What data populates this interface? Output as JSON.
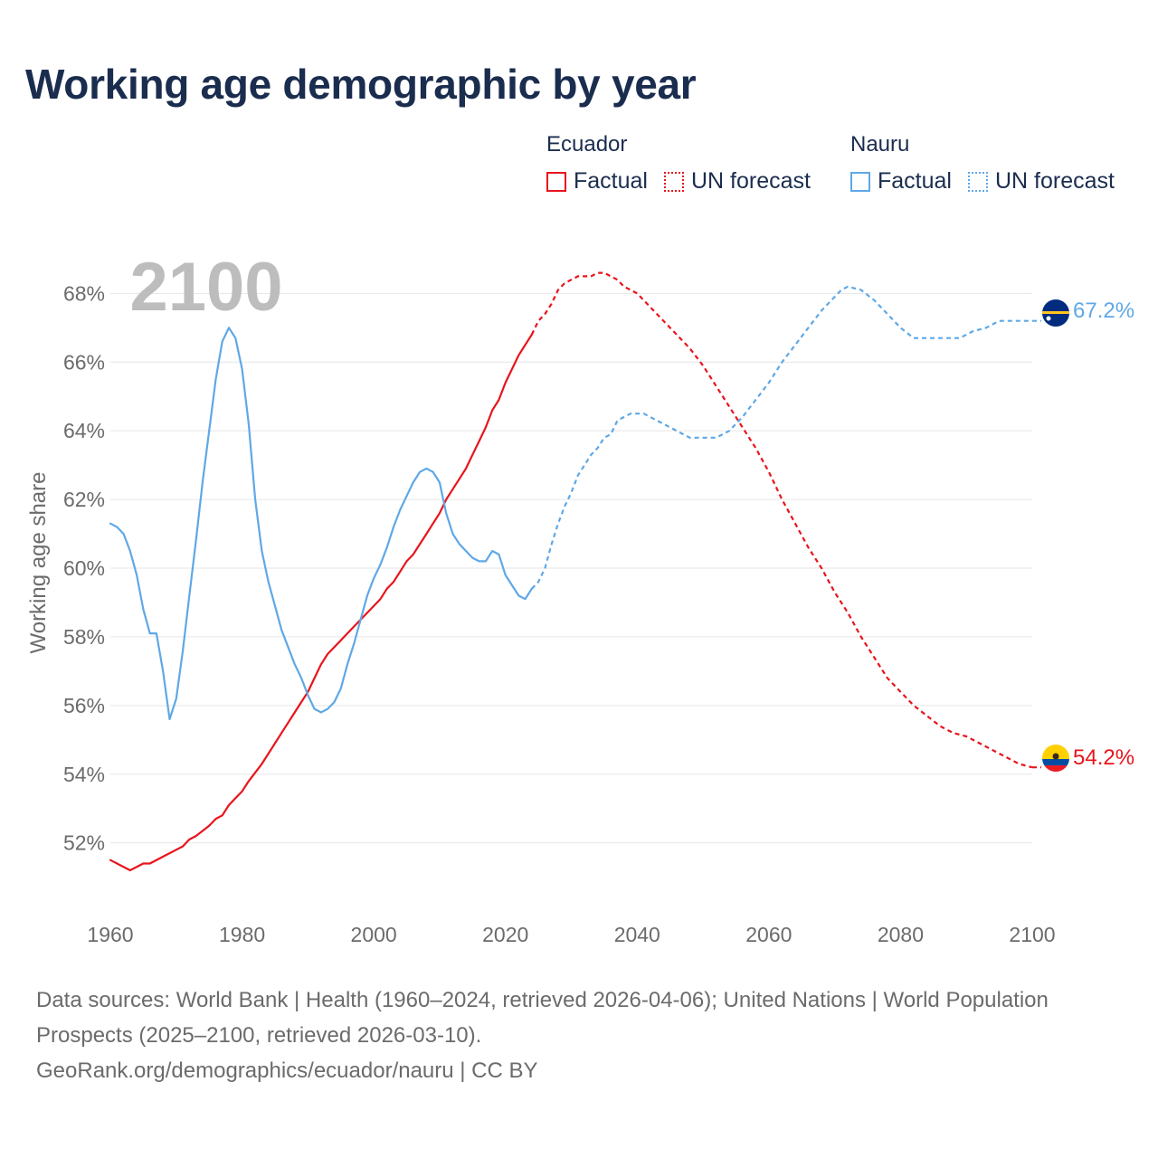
{
  "title": "Working age demographic by year",
  "legend": {
    "groups": [
      {
        "country": "Ecuador",
        "factual_label": "Factual",
        "forecast_label": "UN forecast",
        "color": "#e8141c"
      },
      {
        "country": "Nauru",
        "factual_label": "Factual",
        "forecast_label": "UN forecast",
        "color": "#5fa8e6"
      }
    ]
  },
  "footer": {
    "line1": "Data sources: World Bank | Health (1960–2024, retrieved 2026-04-06); United Nations | World Population Prospects (2025–2100, retrieved 2026-03-10).",
    "line2": "GeoRank.org/demographics/ecuador/nauru | CC BY"
  },
  "chart_data": {
    "type": "line",
    "title": "Working age demographic by year",
    "xlabel": "",
    "ylabel": "Working age share",
    "year_watermark": "2100",
    "xlim": [
      1960,
      2100
    ],
    "ylim": [
      50.2,
      69.3
    ],
    "x_ticks": [
      1960,
      1980,
      2000,
      2020,
      2040,
      2060,
      2080,
      2100
    ],
    "x_tick_labels": [
      "1960",
      "1980",
      "2000",
      "2020",
      "2040",
      "2060",
      "2080",
      "2100"
    ],
    "y_ticks": [
      52,
      54,
      56,
      58,
      60,
      62,
      64,
      66,
      68
    ],
    "y_tick_labels": [
      "52%",
      "54%",
      "56%",
      "58%",
      "60%",
      "62%",
      "64%",
      "66%",
      "68%"
    ],
    "grid": true,
    "factual_end_year": 2024,
    "series": [
      {
        "name": "Ecuador",
        "color": "#e8141c",
        "end_label": "54.2%",
        "flag": "ecuador",
        "points": [
          [
            1960,
            51.5
          ],
          [
            1963,
            51.2
          ],
          [
            1965,
            51.4
          ],
          [
            1966,
            51.4
          ],
          [
            1968,
            51.6
          ],
          [
            1970,
            51.8
          ],
          [
            1971,
            51.9
          ],
          [
            1972,
            52.1
          ],
          [
            1973,
            52.2
          ],
          [
            1975,
            52.5
          ],
          [
            1976,
            52.7
          ],
          [
            1977,
            52.8
          ],
          [
            1978,
            53.1
          ],
          [
            1979,
            53.3
          ],
          [
            1980,
            53.5
          ],
          [
            1981,
            53.8
          ],
          [
            1983,
            54.3
          ],
          [
            1984,
            54.6
          ],
          [
            1986,
            55.2
          ],
          [
            1987,
            55.5
          ],
          [
            1988,
            55.8
          ],
          [
            1989,
            56.1
          ],
          [
            1990,
            56.4
          ],
          [
            1991,
            56.8
          ],
          [
            1992,
            57.2
          ],
          [
            1993,
            57.5
          ],
          [
            1995,
            57.9
          ],
          [
            1997,
            58.3
          ],
          [
            1999,
            58.7
          ],
          [
            2001,
            59.1
          ],
          [
            2002,
            59.4
          ],
          [
            2003,
            59.6
          ],
          [
            2004,
            59.9
          ],
          [
            2005,
            60.2
          ],
          [
            2006,
            60.4
          ],
          [
            2007,
            60.7
          ],
          [
            2008,
            61.0
          ],
          [
            2009,
            61.3
          ],
          [
            2010,
            61.6
          ],
          [
            2011,
            62.0
          ],
          [
            2012,
            62.3
          ],
          [
            2013,
            62.6
          ],
          [
            2014,
            62.9
          ],
          [
            2015,
            63.3
          ],
          [
            2016,
            63.7
          ],
          [
            2017,
            64.1
          ],
          [
            2018,
            64.6
          ],
          [
            2019,
            64.9
          ],
          [
            2020,
            65.4
          ],
          [
            2021,
            65.8
          ],
          [
            2022,
            66.2
          ],
          [
            2023,
            66.5
          ],
          [
            2024,
            66.8
          ],
          [
            2025,
            67.2
          ],
          [
            2026,
            67.4
          ],
          [
            2027,
            67.7
          ],
          [
            2028,
            68.1
          ],
          [
            2029,
            68.3
          ],
          [
            2030,
            68.4
          ],
          [
            2031,
            68.5
          ],
          [
            2033,
            68.5
          ],
          [
            2034,
            68.6
          ],
          [
            2035,
            68.6
          ],
          [
            2036,
            68.5
          ],
          [
            2037,
            68.4
          ],
          [
            2038,
            68.2
          ],
          [
            2040,
            68.0
          ],
          [
            2042,
            67.6
          ],
          [
            2044,
            67.2
          ],
          [
            2046,
            66.8
          ],
          [
            2048,
            66.4
          ],
          [
            2050,
            65.9
          ],
          [
            2052,
            65.3
          ],
          [
            2054,
            64.7
          ],
          [
            2056,
            64.1
          ],
          [
            2058,
            63.5
          ],
          [
            2060,
            62.8
          ],
          [
            2062,
            62.0
          ],
          [
            2064,
            61.3
          ],
          [
            2066,
            60.6
          ],
          [
            2068,
            60.0
          ],
          [
            2070,
            59.3
          ],
          [
            2072,
            58.7
          ],
          [
            2074,
            58.0
          ],
          [
            2076,
            57.4
          ],
          [
            2078,
            56.8
          ],
          [
            2080,
            56.4
          ],
          [
            2082,
            56.0
          ],
          [
            2084,
            55.7
          ],
          [
            2086,
            55.4
          ],
          [
            2088,
            55.2
          ],
          [
            2090,
            55.1
          ],
          [
            2092,
            54.9
          ],
          [
            2094,
            54.7
          ],
          [
            2096,
            54.5
          ],
          [
            2098,
            54.3
          ],
          [
            2100,
            54.2
          ]
        ]
      },
      {
        "name": "Nauru",
        "color": "#5fa8e6",
        "end_label": "67.2%",
        "flag": "nauru",
        "points": [
          [
            1960,
            61.3
          ],
          [
            1961,
            61.2
          ],
          [
            1962,
            61.0
          ],
          [
            1963,
            60.5
          ],
          [
            1964,
            59.8
          ],
          [
            1965,
            58.8
          ],
          [
            1966,
            58.1
          ],
          [
            1967,
            58.1
          ],
          [
            1968,
            57.0
          ],
          [
            1969,
            55.6
          ],
          [
            1970,
            56.2
          ],
          [
            1971,
            57.6
          ],
          [
            1972,
            59.2
          ],
          [
            1973,
            60.8
          ],
          [
            1974,
            62.5
          ],
          [
            1975,
            64.0
          ],
          [
            1976,
            65.5
          ],
          [
            1977,
            66.6
          ],
          [
            1978,
            67.0
          ],
          [
            1979,
            66.7
          ],
          [
            1980,
            65.8
          ],
          [
            1981,
            64.2
          ],
          [
            1982,
            62.0
          ],
          [
            1983,
            60.5
          ],
          [
            1984,
            59.6
          ],
          [
            1985,
            58.9
          ],
          [
            1986,
            58.2
          ],
          [
            1987,
            57.7
          ],
          [
            1988,
            57.2
          ],
          [
            1989,
            56.8
          ],
          [
            1990,
            56.3
          ],
          [
            1991,
            55.9
          ],
          [
            1992,
            55.8
          ],
          [
            1993,
            55.9
          ],
          [
            1994,
            56.1
          ],
          [
            1995,
            56.5
          ],
          [
            1996,
            57.2
          ],
          [
            1997,
            57.8
          ],
          [
            1998,
            58.5
          ],
          [
            1999,
            59.2
          ],
          [
            2000,
            59.7
          ],
          [
            2001,
            60.1
          ],
          [
            2002,
            60.6
          ],
          [
            2003,
            61.2
          ],
          [
            2004,
            61.7
          ],
          [
            2005,
            62.1
          ],
          [
            2006,
            62.5
          ],
          [
            2007,
            62.8
          ],
          [
            2008,
            62.9
          ],
          [
            2009,
            62.8
          ],
          [
            2010,
            62.5
          ],
          [
            2011,
            61.6
          ],
          [
            2012,
            61.0
          ],
          [
            2013,
            60.7
          ],
          [
            2014,
            60.5
          ],
          [
            2015,
            60.3
          ],
          [
            2016,
            60.2
          ],
          [
            2017,
            60.2
          ],
          [
            2018,
            60.5
          ],
          [
            2019,
            60.4
          ],
          [
            2020,
            59.8
          ],
          [
            2021,
            59.5
          ],
          [
            2022,
            59.2
          ],
          [
            2023,
            59.1
          ],
          [
            2024,
            59.4
          ],
          [
            2025,
            59.6
          ],
          [
            2026,
            60.0
          ],
          [
            2027,
            60.7
          ],
          [
            2028,
            61.3
          ],
          [
            2029,
            61.8
          ],
          [
            2030,
            62.2
          ],
          [
            2031,
            62.7
          ],
          [
            2032,
            63.0
          ],
          [
            2033,
            63.3
          ],
          [
            2034,
            63.5
          ],
          [
            2035,
            63.8
          ],
          [
            2036,
            63.9
          ],
          [
            2037,
            64.3
          ],
          [
            2038,
            64.4
          ],
          [
            2039,
            64.5
          ],
          [
            2041,
            64.5
          ],
          [
            2043,
            64.3
          ],
          [
            2045,
            64.1
          ],
          [
            2047,
            63.9
          ],
          [
            2048,
            63.8
          ],
          [
            2052,
            63.8
          ],
          [
            2054,
            64.0
          ],
          [
            2056,
            64.4
          ],
          [
            2058,
            64.9
          ],
          [
            2060,
            65.4
          ],
          [
            2062,
            66.0
          ],
          [
            2064,
            66.5
          ],
          [
            2066,
            67.0
          ],
          [
            2068,
            67.5
          ],
          [
            2070,
            67.9
          ],
          [
            2071,
            68.1
          ],
          [
            2072,
            68.2
          ],
          [
            2074,
            68.1
          ],
          [
            2076,
            67.8
          ],
          [
            2078,
            67.4
          ],
          [
            2080,
            67.0
          ],
          [
            2082,
            66.7
          ],
          [
            2084,
            66.7
          ],
          [
            2089,
            66.7
          ],
          [
            2091,
            66.9
          ],
          [
            2093,
            67.0
          ],
          [
            2095,
            67.2
          ],
          [
            2100,
            67.2
          ]
        ]
      }
    ]
  }
}
